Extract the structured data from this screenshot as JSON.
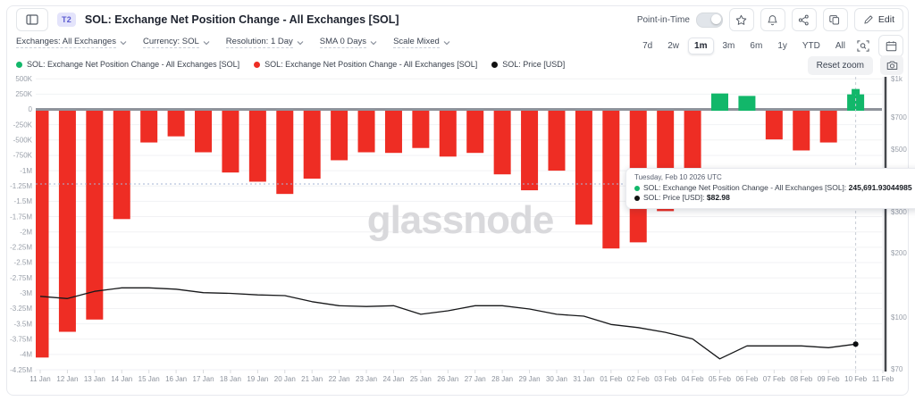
{
  "header": {
    "badge": "T2",
    "title": "SOL: Exchange Net Position Change - All Exchanges [SOL]",
    "point_in_time_label": "Point-in-Time",
    "edit_label": "Edit"
  },
  "controls": {
    "filters": [
      {
        "label": "Exchanges: All Exchanges"
      },
      {
        "label": "Currency: SOL"
      },
      {
        "label": "Resolution: 1 Day"
      },
      {
        "label": "SMA 0 Days"
      },
      {
        "label": "Scale Mixed"
      }
    ],
    "ranges": [
      "7d",
      "2w",
      "1m",
      "3m",
      "6m",
      "1y",
      "YTD",
      "All"
    ],
    "selected_range": "1m"
  },
  "legend": [
    {
      "label": "SOL: Exchange Net Position Change - All Exchanges [SOL]",
      "color": "#12b76a"
    },
    {
      "label": "SOL: Exchange Net Position Change - All Exchanges [SOL]",
      "color": "#ee2d24"
    },
    {
      "label": "SOL: Price [USD]",
      "color": "#111111"
    }
  ],
  "chart_actions": {
    "reset_zoom_label": "Reset zoom"
  },
  "watermark": "glassnode",
  "tooltip": {
    "date": "Tuesday, Feb 10 2026 UTC",
    "rows": [
      {
        "color": "#12b76a",
        "label": "SOL: Exchange Net Position Change - All Exchanges [SOL]:",
        "value": "245,691.93044985"
      },
      {
        "color": "#111111",
        "label": "SOL: Price [USD]:",
        "value": "$82.98"
      }
    ]
  },
  "chart_data": {
    "type": "bar",
    "title": "SOL: Exchange Net Position Change - All Exchanges [SOL]",
    "categories": [
      "11 Jan",
      "12 Jan",
      "13 Jan",
      "14 Jan",
      "15 Jan",
      "16 Jan",
      "17 Jan",
      "18 Jan",
      "19 Jan",
      "20 Jan",
      "21 Jan",
      "22 Jan",
      "23 Jan",
      "24 Jan",
      "25 Jan",
      "26 Jan",
      "27 Jan",
      "28 Jan",
      "29 Jan",
      "30 Jan",
      "31 Jan",
      "01 Feb",
      "02 Feb",
      "03 Feb",
      "04 Feb",
      "05 Feb",
      "06 Feb",
      "07 Feb",
      "08 Feb",
      "09 Feb",
      "10 Feb"
    ],
    "x_axis_ticks": [
      "11 Jan",
      "12 Jan",
      "13 Jan",
      "14 Jan",
      "15 Jan",
      "16 Jan",
      "17 Jan",
      "18 Jan",
      "19 Jan",
      "20 Jan",
      "21 Jan",
      "22 Jan",
      "23 Jan",
      "24 Jan",
      "25 Jan",
      "26 Jan",
      "27 Jan",
      "28 Jan",
      "29 Jan",
      "30 Jan",
      "31 Jan",
      "01 Feb",
      "02 Feb",
      "03 Feb",
      "04 Feb",
      "05 Feb",
      "06 Feb",
      "07 Feb",
      "08 Feb",
      "09 Feb",
      "10 Feb",
      "11 Feb"
    ],
    "series": [
      {
        "name": "SOL: Exchange Net Position Change - All Exchanges [SOL]",
        "type": "bar",
        "unit": "SOL",
        "values": [
          -4050000,
          -3630000,
          -3430000,
          -1790000,
          -540000,
          -440000,
          -700000,
          -1030000,
          -1180000,
          -1380000,
          -1130000,
          -830000,
          -700000,
          -710000,
          -630000,
          -770000,
          -710000,
          -1060000,
          -1320000,
          -1000000,
          -1880000,
          -2270000,
          -2170000,
          -1660000,
          -1350000,
          260000,
          220000,
          -490000,
          -670000,
          -540000,
          245691.93044985
        ]
      },
      {
        "name": "SOL: Price [USD]",
        "type": "line",
        "unit": "USD",
        "values": [
          125,
          122,
          132,
          137,
          137,
          135,
          130,
          129,
          127,
          126,
          118,
          113,
          112,
          113,
          103,
          107,
          113,
          113,
          109,
          103,
          101,
          95,
          93,
          90,
          86,
          75,
          82,
          82,
          82,
          81,
          82.98
        ]
      }
    ],
    "left_axis": {
      "ticks": [
        "500K",
        "250K",
        "0",
        "-250K",
        "-500K",
        "-750K",
        "-1M",
        "-1.25M",
        "-1.5M",
        "-1.75M",
        "-2M",
        "-2.25M",
        "-2.5M",
        "-2.75M",
        "-3M",
        "-3.25M",
        "-3.5M",
        "-3.75M",
        "-4M",
        "-4.25M"
      ],
      "max": 500000,
      "min": -4250000,
      "tick_step": 250000
    },
    "right_axis": {
      "scale": "log",
      "ticks": [
        "$1k",
        "$700",
        "$500",
        "$300",
        "$200",
        "$100",
        "$70"
      ],
      "tick_values": [
        1000,
        700,
        500,
        300,
        200,
        100,
        70
      ]
    },
    "grid": true,
    "legend_position": "top",
    "colors": {
      "positive": "#12b76a",
      "negative": "#ee2d24",
      "price": "#17181a"
    },
    "highlight": {
      "date": "10 Feb",
      "bar_value": 245691.93044985,
      "price_value": 82.98
    }
  }
}
